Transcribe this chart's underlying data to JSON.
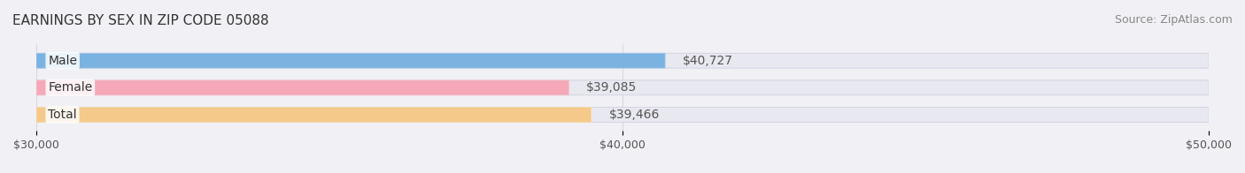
{
  "title": "EARNINGS BY SEX IN ZIP CODE 05088",
  "source": "Source: ZipAtlas.com",
  "categories": [
    "Male",
    "Female",
    "Total"
  ],
  "values": [
    40727,
    39085,
    39466
  ],
  "bar_colors": [
    "#7ab3e0",
    "#f4a8b8",
    "#f5c98a"
  ],
  "bar_edge_colors": [
    "#a0c8ea",
    "#f7c0cb",
    "#f8dba8"
  ],
  "label_colors": [
    "#5588bb",
    "#cc7788",
    "#cc9944"
  ],
  "value_labels": [
    "$40,727",
    "$39,085",
    "$39,466"
  ],
  "xlim": [
    30000,
    50000
  ],
  "xticks": [
    30000,
    40000,
    50000
  ],
  "xtick_labels": [
    "$30,000",
    "$40,000",
    "$50,000"
  ],
  "background_color": "#f0f0f5",
  "bar_bg_color": "#e8e8f0",
  "title_fontsize": 11,
  "source_fontsize": 9,
  "label_fontsize": 10,
  "value_fontsize": 10,
  "tick_fontsize": 9
}
